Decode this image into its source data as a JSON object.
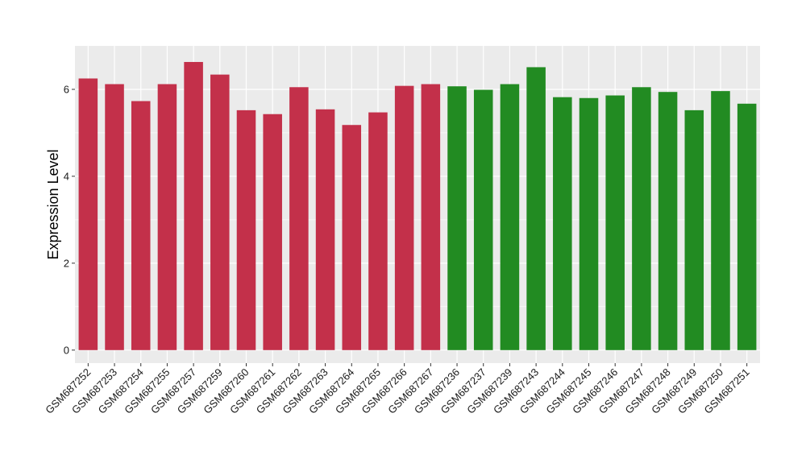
{
  "chart_data": {
    "type": "bar",
    "ylabel": "Expression Level",
    "xlabel": "",
    "ylim": [
      -0.3,
      7.0
    ],
    "yticks": [
      0,
      2,
      4,
      6
    ],
    "ytick_labels": [
      "0",
      "2",
      "4",
      "6"
    ],
    "grid": true,
    "panel_background": "#ebebeb",
    "grid_color": "#ffffff",
    "categories": [
      "GSM687252",
      "GSM687253",
      "GSM687254",
      "GSM687255",
      "GSM687257",
      "GSM687259",
      "GSM687260",
      "GSM687261",
      "GSM687262",
      "GSM687263",
      "GSM687264",
      "GSM687265",
      "GSM687266",
      "GSM687267",
      "GSM687236",
      "GSM687237",
      "GSM687239",
      "GSM687243",
      "GSM687244",
      "GSM687245",
      "GSM687246",
      "GSM687247",
      "GSM687248",
      "GSM687249",
      "GSM687250",
      "GSM687251"
    ],
    "values": [
      6.25,
      6.12,
      5.73,
      6.12,
      6.63,
      6.34,
      5.52,
      5.43,
      6.05,
      5.54,
      5.18,
      5.47,
      6.08,
      6.12,
      6.07,
      5.99,
      6.12,
      6.51,
      5.82,
      5.8,
      5.86,
      6.05,
      5.94,
      5.52,
      5.96,
      5.67
    ],
    "bar_colors": [
      "#c3304a",
      "#c3304a",
      "#c3304a",
      "#c3304a",
      "#c3304a",
      "#c3304a",
      "#c3304a",
      "#c3304a",
      "#c3304a",
      "#c3304a",
      "#c3304a",
      "#c3304a",
      "#c3304a",
      "#c3304a",
      "#228b22",
      "#228b22",
      "#228b22",
      "#228b22",
      "#228b22",
      "#228b22",
      "#228b22",
      "#228b22",
      "#228b22",
      "#228b22",
      "#228b22",
      "#228b22"
    ]
  }
}
